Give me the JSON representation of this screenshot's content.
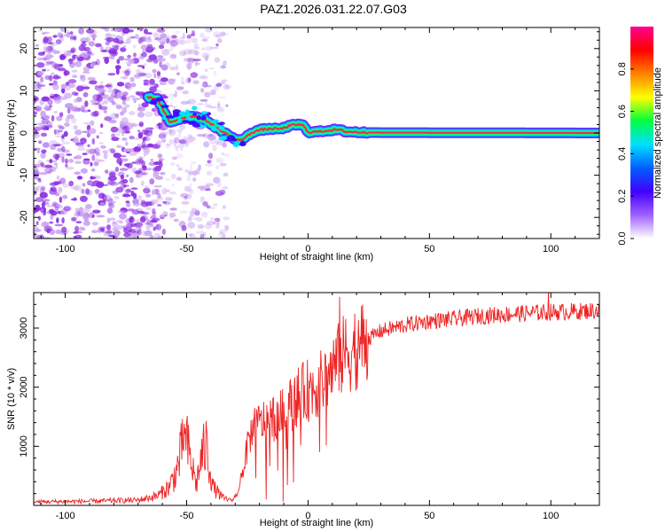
{
  "title": "PAZ1.2026.031.22.07.G03",
  "colors": {
    "snr_line": "#ee2222",
    "scatter_main": "#8a2be2",
    "scatter_light": "#c9a3f0",
    "trace_glow": "#00ff66",
    "trace_core": "#ff2050"
  },
  "chart_data": [
    {
      "type": "heatmap",
      "name": "spectrogram",
      "title": "PAZ1.2026.031.22.07.G03",
      "xlabel": "Height of straight line (km)",
      "ylabel": "Frequency (Hz)",
      "xlim": [
        -113,
        120
      ],
      "ylim": [
        -25,
        25
      ],
      "xticks": [
        -100,
        -50,
        0,
        50,
        100
      ],
      "xtick_labels": [
        "-100",
        "-50",
        "0",
        "50",
        "100"
      ],
      "yticks": [
        -20,
        -10,
        0,
        10,
        20
      ],
      "ytick_labels": [
        "-20",
        "-10",
        "0",
        "10",
        "20"
      ],
      "ridge": {
        "x": [
          -66,
          -62,
          -57,
          -52,
          -47,
          -42,
          -37,
          -32,
          -29,
          -26,
          -23,
          -19,
          -15,
          -11,
          -7,
          -4,
          -2,
          0,
          4,
          8,
          12,
          16,
          20,
          24,
          120
        ],
        "y": [
          8.5,
          8.0,
          2.5,
          3.5,
          4.0,
          3.0,
          1.0,
          -0.8,
          -1.8,
          -1.2,
          0.2,
          0.8,
          1.0,
          1.0,
          1.8,
          2.0,
          1.8,
          0.2,
          0.3,
          0.6,
          0.8,
          0.3,
          0.2,
          0.1,
          0.0
        ]
      },
      "noise_regions": [
        {
          "x_range": [
            -113,
            -58
          ],
          "y_range": [
            -25,
            25
          ],
          "level": "high"
        },
        {
          "x_range": [
            -58,
            -33
          ],
          "y_range": [
            -25,
            25
          ],
          "level": "medium"
        }
      ],
      "colorbar": {
        "label": "Normalized spectral amplitude",
        "range": [
          0,
          1
        ],
        "ticks": [
          0.0,
          0.2,
          0.4,
          0.6,
          0.8
        ],
        "tick_labels": [
          "0.0",
          "0.2",
          "0.4",
          "0.6",
          "0.8"
        ],
        "colors": [
          "#ffffff",
          "#a060ff",
          "#4000ff",
          "#0060ff",
          "#00e0ff",
          "#00ff40",
          "#ffff00",
          "#ff8000",
          "#ff0000",
          "#ff0090"
        ]
      }
    },
    {
      "type": "line",
      "name": "snr",
      "xlabel": "Height of straight line (km)",
      "ylabel": "SNR (10 * v/v)",
      "xlim": [
        -113,
        120
      ],
      "ylim": [
        0,
        3600
      ],
      "xticks": [
        -100,
        -50,
        0,
        50,
        100
      ],
      "xtick_labels": [
        "-100",
        "-50",
        "0",
        "50",
        "100"
      ],
      "yticks": [
        1000,
        2000,
        3000
      ],
      "ytick_labels": [
        "1000",
        "2000",
        "3000"
      ],
      "envelope": {
        "x": [
          -113,
          -90,
          -70,
          -62,
          -57,
          -54,
          -52,
          -50,
          -48,
          -46,
          -44,
          -42,
          -39,
          -35,
          -31,
          -29,
          -27,
          -24,
          -20,
          -15,
          -10,
          -5,
          0,
          5,
          10,
          15,
          20,
          25,
          30,
          40,
          50,
          60,
          70,
          80,
          90,
          100,
          110,
          120
        ],
        "y": [
          60,
          70,
          90,
          160,
          320,
          600,
          950,
          1050,
          700,
          350,
          800,
          1000,
          300,
          120,
          90,
          220,
          580,
          1180,
          1380,
          1480,
          1560,
          1820,
          1950,
          2050,
          2300,
          2550,
          2700,
          2820,
          2950,
          3050,
          3120,
          3150,
          3200,
          3230,
          3250,
          3270,
          3280,
          3300
        ]
      },
      "spikes": [
        {
          "x": 13,
          "y": 3530
        },
        {
          "x": 99,
          "y": 3620
        },
        {
          "x": -51,
          "y": 1380
        },
        {
          "x": -22,
          "y": 1650
        }
      ]
    }
  ]
}
